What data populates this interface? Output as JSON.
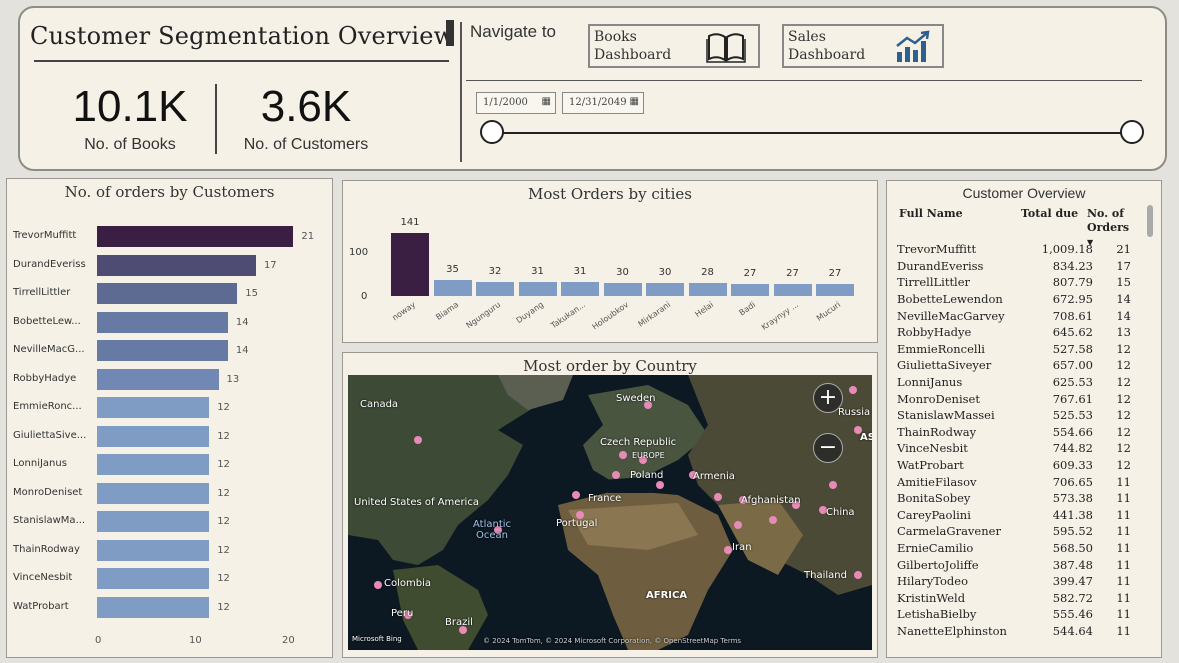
{
  "header": {
    "title": "Customer Segmentation Overview",
    "kpis": [
      {
        "value": "10.1K",
        "label": "No. of Books"
      },
      {
        "value": "3.6K",
        "label": "No. of Customers"
      }
    ],
    "nav_label": "Navigate to",
    "nav_buttons": [
      {
        "label_line1": "Books",
        "label_line2": "Dashboard",
        "icon": "book-icon"
      },
      {
        "label_line1": "Sales",
        "label_line2": "Dashboard",
        "icon": "bar-chart-icon"
      }
    ],
    "date_from": "1/1/2000",
    "date_to": "12/31/2049",
    "slider_range": [
      0,
      1
    ]
  },
  "orders_by_customers": {
    "title": "No. of orders by Customers",
    "color_top": "#3b1f42",
    "color_low": "#7f9cc4",
    "axis_ticks": [
      "0",
      "10",
      "20"
    ]
  },
  "cities_chart": {
    "title": "Most Orders by cities",
    "y_ticks": [
      "100",
      "0"
    ],
    "color_top": "#3b1f42",
    "color_rest": "#7f9cc4"
  },
  "map": {
    "title": "Most order by Country",
    "labels": [
      {
        "text": "Canada"
      },
      {
        "text": "Sweden"
      },
      {
        "text": "Russia"
      },
      {
        "text": "Czech Republic"
      },
      {
        "text": "EUROPE"
      },
      {
        "text": "Poland"
      },
      {
        "text": "Armenia"
      },
      {
        "text": "United States of America"
      },
      {
        "text": "France"
      },
      {
        "text": "Afghanistan"
      },
      {
        "text": "Atlantic Ocean"
      },
      {
        "text": "Portugal"
      },
      {
        "text": "China"
      },
      {
        "text": "Iran"
      },
      {
        "text": "Colombia"
      },
      {
        "text": "AFRICA"
      },
      {
        "text": "Thailand"
      },
      {
        "text": "Peru"
      },
      {
        "text": "Brazil"
      },
      {
        "text": "AS"
      }
    ],
    "zoom_in": "+",
    "zoom_out": "−",
    "credit": "Microsoft Bing",
    "attribution": "© 2024 TomTom, © 2024 Microsoft Corporation, © OpenStreetMap  Terms"
  },
  "customer_overview": {
    "title": "Customer Overview",
    "columns": [
      "Full Name",
      "Total due",
      "No. of Orders"
    ],
    "rows": [
      [
        "TrevorMuffitt",
        "1,009.18",
        "21"
      ],
      [
        "DurandEveriss",
        "834.23",
        "17"
      ],
      [
        "TirrellLittler",
        "807.79",
        "15"
      ],
      [
        "BobetteLewendon",
        "672.95",
        "14"
      ],
      [
        "NevilleMacGarvey",
        "708.61",
        "14"
      ],
      [
        "RobbyHadye",
        "645.62",
        "13"
      ],
      [
        "EmmieRoncelli",
        "527.58",
        "12"
      ],
      [
        "GiuliettaSiveyer",
        "657.00",
        "12"
      ],
      [
        "LonniJanus",
        "625.53",
        "12"
      ],
      [
        "MonroDeniset",
        "767.61",
        "12"
      ],
      [
        "StanislawMassei",
        "525.53",
        "12"
      ],
      [
        "ThainRodway",
        "554.66",
        "12"
      ],
      [
        "VinceNesbit",
        "744.82",
        "12"
      ],
      [
        "WatProbart",
        "609.33",
        "12"
      ],
      [
        "AmitieFilasov",
        "706.65",
        "11"
      ],
      [
        "BonitaSobey",
        "573.38",
        "11"
      ],
      [
        "CareyPaolini",
        "441.38",
        "11"
      ],
      [
        "CarmelaGravener",
        "595.52",
        "11"
      ],
      [
        "ErnieCamilio",
        "568.50",
        "11"
      ],
      [
        "GilbertoJoliffe",
        "387.48",
        "11"
      ],
      [
        "HilaryTodeo",
        "399.47",
        "11"
      ],
      [
        "KristinWeld",
        "582.72",
        "11"
      ],
      [
        "LetishaBielby",
        "555.46",
        "11"
      ],
      [
        "NanetteElphinston",
        "544.64",
        "11"
      ]
    ]
  },
  "chart_data": [
    {
      "type": "bar",
      "orientation": "horizontal",
      "title": "No. of orders by Customers",
      "categories": [
        "TrevorMuffitt",
        "DurandEveriss",
        "TirrellLittler",
        "BobetteLew...",
        "NevilleMacG...",
        "RobbyHadye",
        "EmmieRonc...",
        "GiuliettaSive...",
        "LonniJanus",
        "MonroDeniset",
        "StanislawMa...",
        "ThainRodway",
        "VinceNesbit",
        "WatProbart"
      ],
      "values": [
        21,
        17,
        15,
        14,
        14,
        13,
        12,
        12,
        12,
        12,
        12,
        12,
        12,
        12
      ],
      "xlim": [
        0,
        20
      ],
      "x_ticks": [
        0,
        10,
        20
      ]
    },
    {
      "type": "bar",
      "title": "Most Orders by cities",
      "categories": [
        "noway",
        "Biama",
        "Ngunguru",
        "Duyang",
        "Takukan...",
        "Holoubkov",
        "Mirkarani",
        "Helai",
        "Badi",
        "Kraynyy ...",
        "Mucuri"
      ],
      "values": [
        141,
        35,
        32,
        31,
        31,
        30,
        30,
        28,
        27,
        27,
        27
      ],
      "y_ticks": [
        0,
        100
      ]
    }
  ]
}
